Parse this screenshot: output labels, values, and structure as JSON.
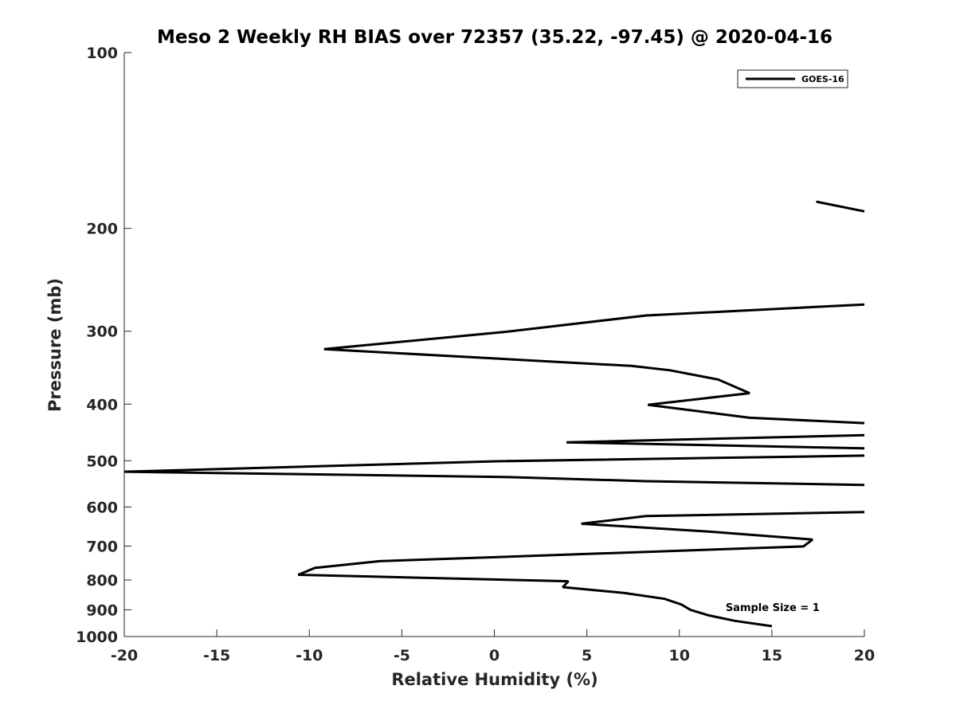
{
  "chart_data": {
    "type": "line",
    "title": "Meso 2 Weekly RH BIAS over 72357 (35.22, -97.45) @ 2020-04-16",
    "xlabel": "Relative Humidity (%)",
    "ylabel": "Pressure (mb)",
    "xlim": [
      -20,
      20
    ],
    "ylim": [
      100,
      1000
    ],
    "y_scale": "log",
    "y_reversed": true,
    "x_ticks": [
      -20,
      -15,
      -10,
      -5,
      0,
      5,
      10,
      15,
      20
    ],
    "x_tick_labels": [
      "-20",
      "-15",
      "-10",
      "-5",
      "0",
      "5",
      "10",
      "15",
      "20"
    ],
    "y_ticks": [
      100,
      200,
      300,
      400,
      500,
      600,
      700,
      800,
      900,
      1000
    ],
    "y_tick_labels": [
      "100",
      "200",
      "300",
      "400",
      "500",
      "600",
      "700",
      "800",
      "900",
      "1000"
    ],
    "legend": {
      "position": "top-right",
      "entries": [
        "GOES-16"
      ]
    },
    "annotations": [
      {
        "text": "Sample Size = 1",
        "x": 12.5,
        "y": 905
      }
    ],
    "series": [
      {
        "name": "GOES-16",
        "color": "#000000",
        "segments": [
          [
            [
              17.4,
              180
            ],
            [
              20.0,
              187
            ]
          ],
          [
            [
              20.0,
              270
            ],
            [
              8.2,
              282
            ],
            [
              0.5,
              301
            ],
            [
              -9.2,
              322
            ],
            [
              7.4,
              344
            ],
            [
              9.5,
              350
            ],
            [
              12.1,
              363
            ],
            [
              13.8,
              383
            ],
            [
              8.3,
              401
            ],
            [
              13.8,
              422
            ],
            [
              20.0,
              431
            ]
          ],
          [
            [
              20.0,
              452
            ],
            [
              3.9,
              465
            ],
            [
              20.0,
              476
            ]
          ],
          [
            [
              20.0,
              490
            ],
            [
              0.1,
              501
            ],
            [
              -20.0,
              522
            ],
            [
              0.5,
              533
            ],
            [
              8.2,
              542
            ],
            [
              20.0,
              550
            ]
          ],
          [
            [
              20.0,
              612
            ],
            [
              8.2,
              622
            ],
            [
              4.7,
              641
            ],
            [
              11.6,
              661
            ],
            [
              17.2,
              682
            ],
            [
              16.7,
              701
            ],
            [
              -6.2,
              743
            ],
            [
              -9.7,
              763
            ],
            [
              -10.6,
              784
            ],
            [
              4.0,
              804
            ],
            [
              3.7,
              823
            ],
            [
              7.0,
              842
            ],
            [
              9.2,
              862
            ],
            [
              10.1,
              881
            ],
            [
              10.6,
              900
            ],
            [
              11.6,
              920
            ],
            [
              13.0,
              940
            ],
            [
              15.0,
              960
            ]
          ]
        ]
      }
    ]
  }
}
